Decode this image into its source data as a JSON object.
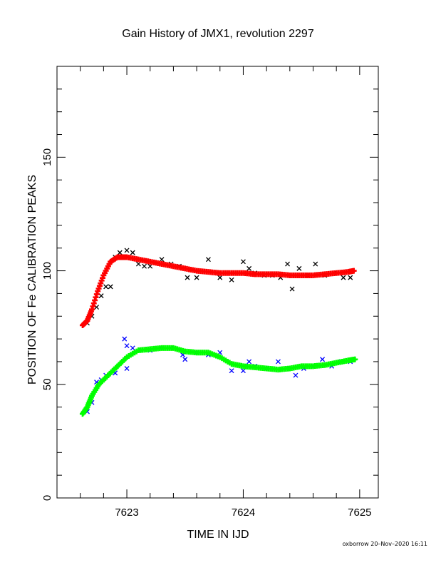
{
  "chart_data": {
    "type": "scatter",
    "title": "Gain History of JMX1, revolution 2297",
    "xlabel": "TIME IN IJD",
    "ylabel": "POSITION OF Fe CALIBRATION PEAKS",
    "xlim": [
      7622.4,
      7625.16
    ],
    "ylim": [
      0,
      190
    ],
    "x_ticks": [
      7623,
      7624,
      7625
    ],
    "y_ticks": [
      0,
      50,
      100,
      150
    ],
    "grid": false,
    "legend": "none",
    "series": [
      {
        "color": "#000000",
        "marker": "x",
        "points": [
          [
            7622.66,
            77
          ],
          [
            7622.7,
            80
          ],
          [
            7622.74,
            84
          ],
          [
            7622.78,
            89
          ],
          [
            7622.82,
            93
          ],
          [
            7622.86,
            93
          ],
          [
            7622.9,
            106
          ],
          [
            7622.94,
            108
          ],
          [
            7623.0,
            109
          ],
          [
            7623.05,
            108
          ],
          [
            7623.1,
            103
          ],
          [
            7623.15,
            102
          ],
          [
            7623.2,
            102
          ],
          [
            7623.3,
            105
          ],
          [
            7623.38,
            103
          ],
          [
            7623.45,
            102
          ],
          [
            7623.52,
            97
          ],
          [
            7623.6,
            97
          ],
          [
            7623.7,
            105
          ],
          [
            7623.8,
            97
          ],
          [
            7623.9,
            96
          ],
          [
            7624.0,
            104
          ],
          [
            7624.05,
            101
          ],
          [
            7624.1,
            99
          ],
          [
            7624.18,
            98
          ],
          [
            7624.25,
            98
          ],
          [
            7624.32,
            97
          ],
          [
            7624.38,
            103
          ],
          [
            7624.42,
            92
          ],
          [
            7624.48,
            101
          ],
          [
            7624.55,
            98
          ],
          [
            7624.62,
            103
          ],
          [
            7624.7,
            98
          ],
          [
            7624.78,
            99
          ],
          [
            7624.86,
            97
          ],
          [
            7624.92,
            97
          ]
        ]
      },
      {
        "color": "#ff0000",
        "marker": "+",
        "points": [
          [
            7622.62,
            76
          ],
          [
            7622.66,
            78
          ],
          [
            7622.7,
            83
          ],
          [
            7622.75,
            91
          ],
          [
            7622.8,
            98
          ],
          [
            7622.86,
            104
          ],
          [
            7622.92,
            106
          ],
          [
            7623.0,
            106
          ],
          [
            7623.1,
            105
          ],
          [
            7623.2,
            104
          ],
          [
            7623.3,
            103
          ],
          [
            7623.4,
            102
          ],
          [
            7623.5,
            101
          ],
          [
            7623.6,
            100
          ],
          [
            7623.7,
            99.5
          ],
          [
            7623.8,
            99
          ],
          [
            7623.9,
            99
          ],
          [
            7624.0,
            99
          ],
          [
            7624.1,
            98.5
          ],
          [
            7624.2,
            98.5
          ],
          [
            7624.3,
            98.5
          ],
          [
            7624.4,
            98
          ],
          [
            7624.5,
            98
          ],
          [
            7624.6,
            98
          ],
          [
            7624.7,
            98.5
          ],
          [
            7624.8,
            99
          ],
          [
            7624.9,
            99.5
          ],
          [
            7624.95,
            100
          ]
        ]
      },
      {
        "color": "#0000ff",
        "marker": "x",
        "points": [
          [
            7622.66,
            38
          ],
          [
            7622.7,
            42
          ],
          [
            7622.74,
            51
          ],
          [
            7622.78,
            52
          ],
          [
            7622.82,
            54
          ],
          [
            7622.9,
            55
          ],
          [
            7623.0,
            57
          ],
          [
            7622.98,
            70
          ],
          [
            7623.0,
            67
          ],
          [
            7623.05,
            66
          ],
          [
            7623.12,
            65
          ],
          [
            7623.2,
            65
          ],
          [
            7623.3,
            66
          ],
          [
            7623.38,
            66
          ],
          [
            7623.48,
            63
          ],
          [
            7623.5,
            61
          ],
          [
            7623.6,
            64
          ],
          [
            7623.7,
            63
          ],
          [
            7623.8,
            64
          ],
          [
            7623.9,
            56
          ],
          [
            7624.0,
            56
          ],
          [
            7624.05,
            60
          ],
          [
            7624.1,
            58
          ],
          [
            7624.2,
            57
          ],
          [
            7624.3,
            60
          ],
          [
            7624.38,
            57
          ],
          [
            7624.45,
            54
          ],
          [
            7624.52,
            57
          ],
          [
            7624.6,
            58
          ],
          [
            7624.68,
            61
          ],
          [
            7624.76,
            58
          ],
          [
            7624.84,
            60
          ],
          [
            7624.92,
            60
          ]
        ]
      },
      {
        "color": "#00ff00",
        "marker": "+",
        "points": [
          [
            7622.62,
            37
          ],
          [
            7622.66,
            40
          ],
          [
            7622.7,
            45
          ],
          [
            7622.76,
            50
          ],
          [
            7622.84,
            54
          ],
          [
            7622.92,
            58
          ],
          [
            7623.0,
            62
          ],
          [
            7623.1,
            65
          ],
          [
            7623.2,
            65.5
          ],
          [
            7623.3,
            66
          ],
          [
            7623.4,
            66
          ],
          [
            7623.5,
            64.5
          ],
          [
            7623.6,
            64
          ],
          [
            7623.7,
            64
          ],
          [
            7623.8,
            62
          ],
          [
            7623.9,
            59
          ],
          [
            7624.0,
            58
          ],
          [
            7624.1,
            57.5
          ],
          [
            7624.2,
            57
          ],
          [
            7624.3,
            56.5
          ],
          [
            7624.4,
            57
          ],
          [
            7624.5,
            58
          ],
          [
            7624.6,
            58
          ],
          [
            7624.7,
            58.5
          ],
          [
            7624.8,
            59.5
          ],
          [
            7624.9,
            60.5
          ],
          [
            7624.96,
            61
          ]
        ]
      }
    ]
  },
  "footer": "oxborrow 20–Nov–2020 16:11"
}
